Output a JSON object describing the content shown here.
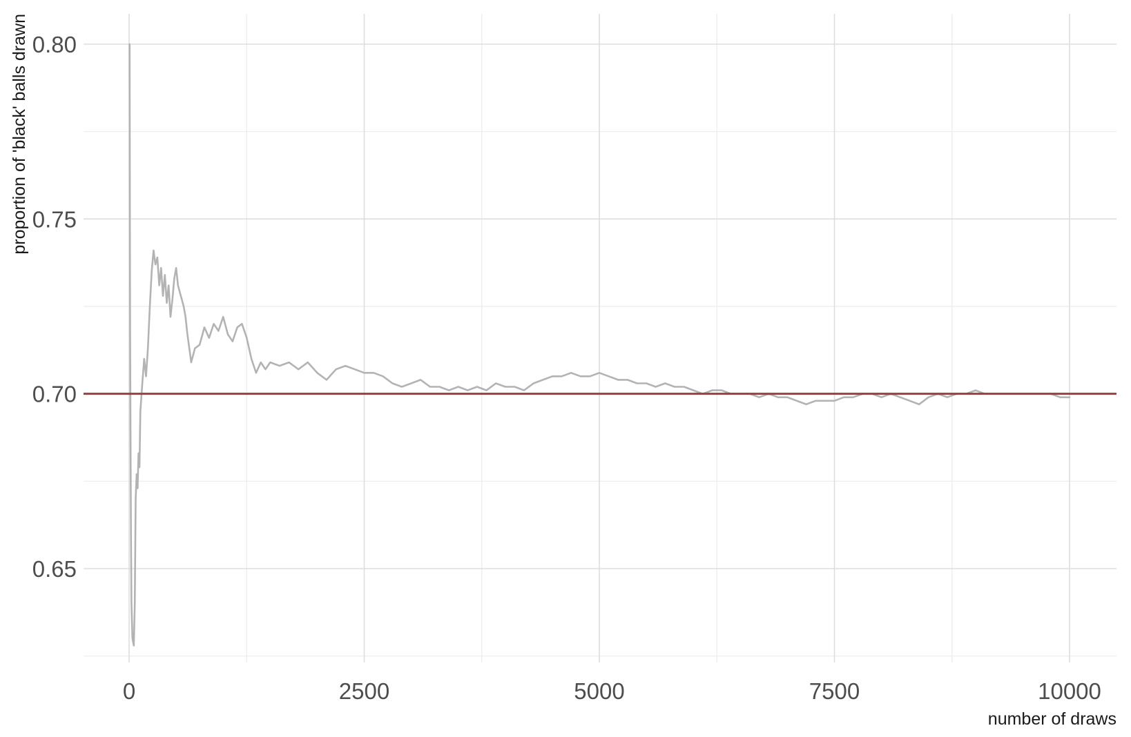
{
  "chart_data": {
    "type": "line",
    "xlabel": "number of draws",
    "ylabel": "proportion of 'black' balls drawn",
    "xlim": [
      -200,
      10500
    ],
    "ylim": [
      0.625,
      0.808
    ],
    "x_ticks": [
      0,
      2500,
      5000,
      7500,
      10000
    ],
    "x_tick_labels": [
      "0",
      "2500",
      "5000",
      "7500",
      "10000"
    ],
    "y_ticks": [
      0.65,
      0.7,
      0.75,
      0.8
    ],
    "y_tick_labels": [
      "0.65",
      "0.70",
      "0.75",
      "0.80"
    ],
    "grid": true,
    "legend": "none",
    "series": [
      {
        "color": "#b3b3b3",
        "x": [
          5,
          10,
          15,
          20,
          25,
          35,
          50,
          60,
          70,
          80,
          90,
          100,
          110,
          120,
          140,
          160,
          180,
          200,
          220,
          240,
          260,
          280,
          300,
          320,
          340,
          360,
          380,
          400,
          420,
          440,
          460,
          480,
          500,
          520,
          540,
          560,
          580,
          600,
          620,
          640,
          660,
          680,
          700,
          750,
          800,
          850,
          900,
          950,
          1000,
          1050,
          1100,
          1150,
          1200,
          1250,
          1300,
          1350,
          1400,
          1450,
          1500,
          1600,
          1700,
          1800,
          1900,
          2000,
          2100,
          2200,
          2300,
          2400,
          2500,
          2600,
          2700,
          2800,
          2900,
          3000,
          3100,
          3200,
          3300,
          3400,
          3500,
          3600,
          3700,
          3800,
          3900,
          4000,
          4100,
          4200,
          4300,
          4400,
          4500,
          4600,
          4700,
          4800,
          4900,
          5000,
          5100,
          5200,
          5300,
          5400,
          5500,
          5600,
          5700,
          5800,
          5900,
          6000,
          6100,
          6200,
          6300,
          6400,
          6500,
          6600,
          6700,
          6800,
          6900,
          7000,
          7100,
          7200,
          7300,
          7400,
          7500,
          7600,
          7700,
          7800,
          7900,
          8000,
          8100,
          8200,
          8300,
          8400,
          8500,
          8600,
          8700,
          8800,
          8900,
          9000,
          9100,
          9200,
          9300,
          9400,
          9500,
          9600,
          9700,
          9800,
          9900,
          10000
        ],
        "values": [
          0.8,
          0.72,
          0.69,
          0.66,
          0.64,
          0.63,
          0.628,
          0.64,
          0.67,
          0.677,
          0.673,
          0.683,
          0.679,
          0.695,
          0.703,
          0.71,
          0.705,
          0.713,
          0.725,
          0.735,
          0.741,
          0.737,
          0.739,
          0.731,
          0.736,
          0.728,
          0.734,
          0.726,
          0.731,
          0.722,
          0.727,
          0.733,
          0.736,
          0.731,
          0.729,
          0.727,
          0.725,
          0.722,
          0.717,
          0.713,
          0.709,
          0.711,
          0.713,
          0.714,
          0.719,
          0.716,
          0.72,
          0.718,
          0.722,
          0.717,
          0.715,
          0.719,
          0.72,
          0.716,
          0.71,
          0.706,
          0.709,
          0.707,
          0.709,
          0.708,
          0.709,
          0.707,
          0.709,
          0.706,
          0.704,
          0.707,
          0.708,
          0.707,
          0.706,
          0.706,
          0.705,
          0.703,
          0.702,
          0.703,
          0.704,
          0.702,
          0.702,
          0.701,
          0.702,
          0.701,
          0.702,
          0.701,
          0.703,
          0.702,
          0.702,
          0.701,
          0.703,
          0.704,
          0.705,
          0.705,
          0.706,
          0.705,
          0.705,
          0.706,
          0.705,
          0.704,
          0.704,
          0.703,
          0.703,
          0.702,
          0.703,
          0.702,
          0.702,
          0.701,
          0.7,
          0.701,
          0.701,
          0.7,
          0.7,
          0.7,
          0.699,
          0.7,
          0.699,
          0.699,
          0.698,
          0.697,
          0.698,
          0.698,
          0.698,
          0.699,
          0.699,
          0.7,
          0.7,
          0.699,
          0.7,
          0.699,
          0.698,
          0.697,
          0.699,
          0.7,
          0.699,
          0.7,
          0.7,
          0.701,
          0.7,
          0.7,
          0.7,
          0.7,
          0.7,
          0.7,
          0.7,
          0.7,
          0.699,
          0.699
        ]
      }
    ],
    "reference_line": {
      "y": 0.7,
      "color": "#a23b3b"
    }
  }
}
